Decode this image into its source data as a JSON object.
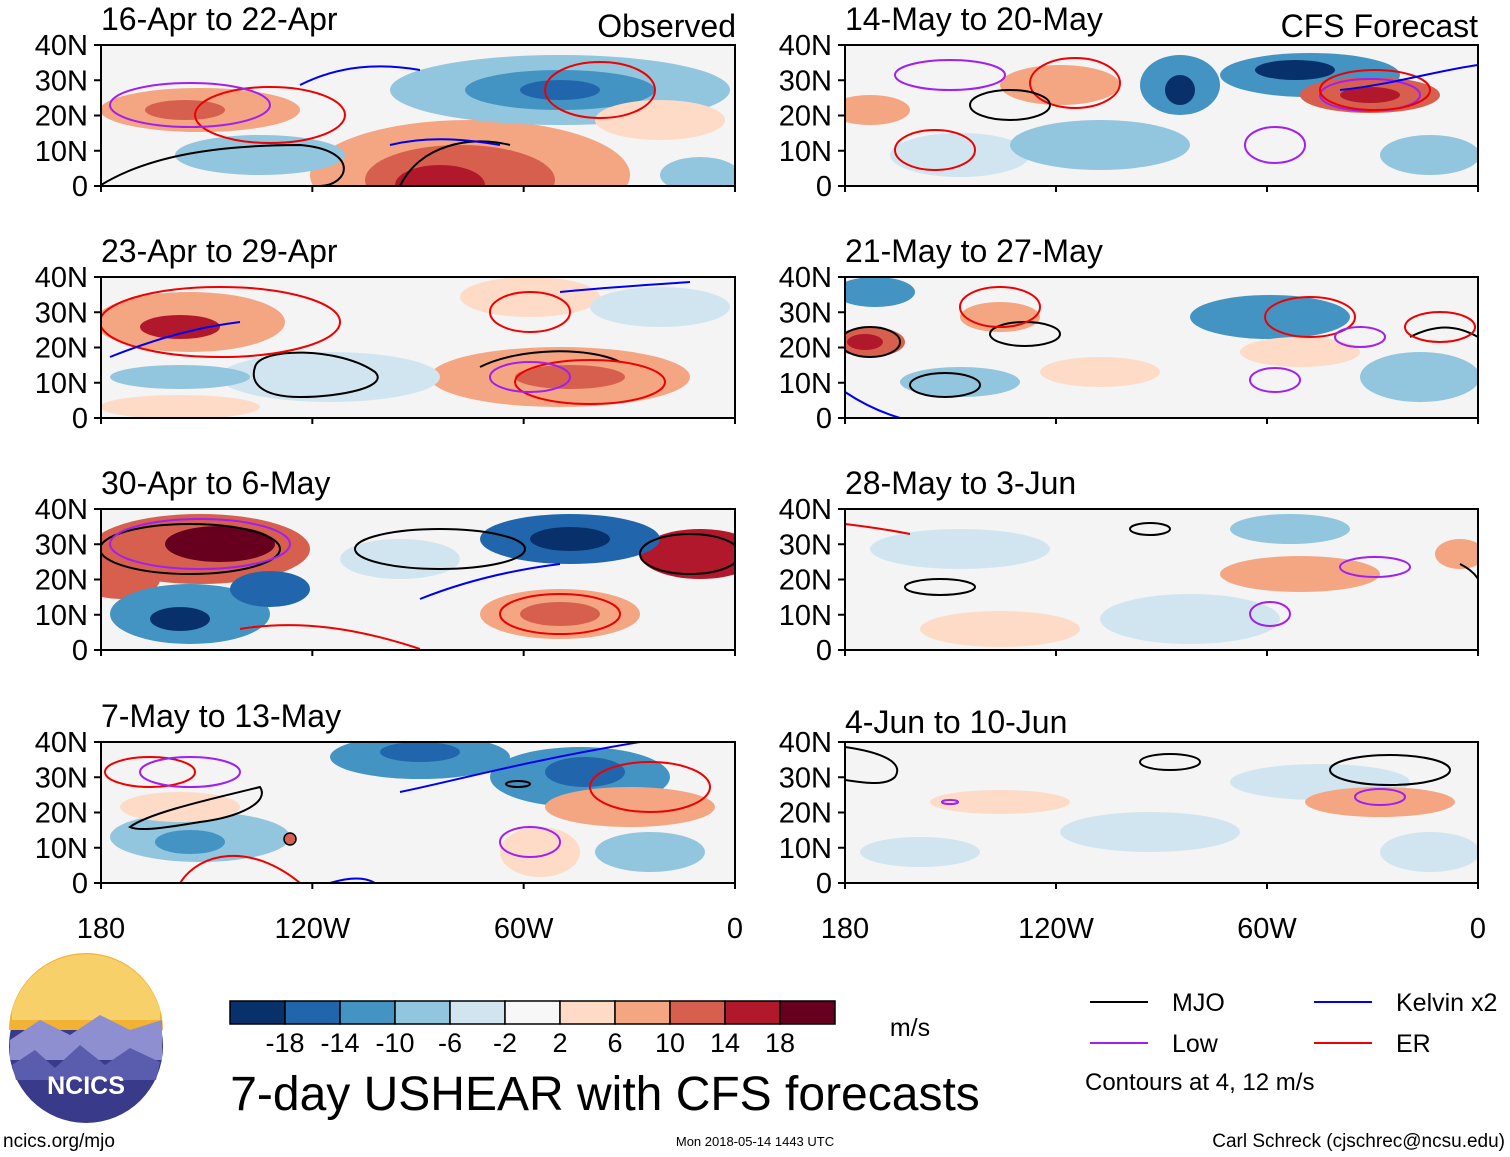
{
  "figure": {
    "main_title": "7-day USHEAR with CFS forecasts",
    "left_label": "Observed",
    "right_label": "CFS Forecast",
    "site_url": "ncics.org/mjo",
    "timestamp": "Mon 2018-05-14 1443 UTC",
    "credit": "Carl Schreck (cjschrec@ncsu.edu)",
    "logo_text": "NCICS"
  },
  "panels": {
    "observed": [
      {
        "title": "16-Apr to 22-Apr"
      },
      {
        "title": "23-Apr to 29-Apr"
      },
      {
        "title": "30-Apr to 6-May"
      },
      {
        "title": "7-May to 13-May"
      }
    ],
    "forecast": [
      {
        "title": "14-May to 20-May"
      },
      {
        "title": "21-May to 27-May"
      },
      {
        "title": "28-May to 3-Jun"
      },
      {
        "title": "4-Jun to 10-Jun"
      }
    ]
  },
  "axes": {
    "lat_ticks": [
      "40N",
      "30N",
      "20N",
      "10N",
      "0"
    ],
    "lon_ticks": [
      "180",
      "120W",
      "60W",
      "0"
    ]
  },
  "colorbar": {
    "units": "m/s",
    "tick_labels": [
      "-18",
      "-14",
      "-10",
      "-6",
      "-2",
      "2",
      "6",
      "10",
      "14",
      "18"
    ],
    "colors": [
      "#08306b",
      "#2166ac",
      "#4393c3",
      "#92c5de",
      "#d1e5f0",
      "#f7f7f7",
      "#fddbc7",
      "#f4a582",
      "#d6604d",
      "#b2182b",
      "#67001f"
    ]
  },
  "legend": {
    "items": [
      {
        "label": "MJO",
        "color": "#000000"
      },
      {
        "label": "Kelvin x2",
        "color": "#0000ee"
      },
      {
        "label": "Low",
        "color": "#a020f0"
      },
      {
        "label": "ER",
        "color": "#ee0000"
      }
    ],
    "note": "Contours at 4, 12 m/s"
  }
}
